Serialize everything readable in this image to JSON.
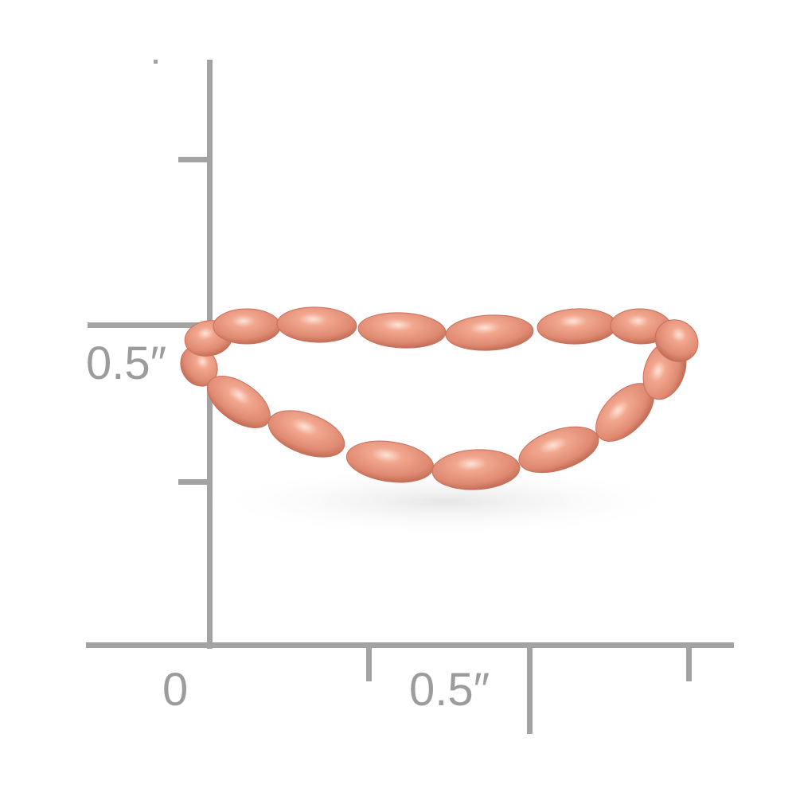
{
  "scale": {
    "origin_label": "0",
    "x_label": "0.5″",
    "y_label": "0.5″",
    "line_color": "#a3a3a3",
    "label_color": "#9c9c9c"
  },
  "product": {
    "subject": "ring",
    "metal_color": "#e8927a",
    "highlight_color": "#fbd9cc",
    "shadow_color": "#b8604a"
  }
}
